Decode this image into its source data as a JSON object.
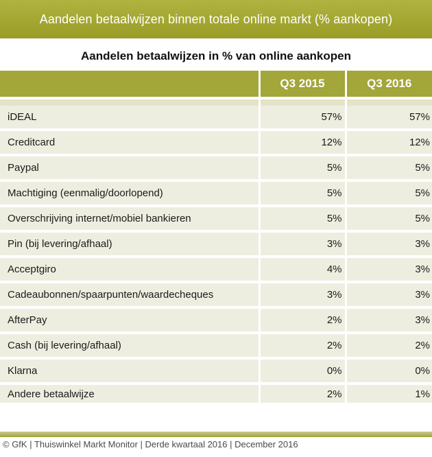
{
  "banner": {
    "title": "Aandelen betaalwijzen binnen totale online markt (% aankopen)"
  },
  "table": {
    "subtitle": "Aandelen betaalwijzen in % van online aankopen",
    "columns": [
      "",
      "Q3 2015",
      "Q3 2016"
    ],
    "rows": [
      {
        "label": "iDEAL",
        "q3_2015": "57%",
        "q3_2016": "57%"
      },
      {
        "label": "Creditcard",
        "q3_2015": "12%",
        "q3_2016": "12%"
      },
      {
        "label": "Paypal",
        "q3_2015": "5%",
        "q3_2016": "5%"
      },
      {
        "label": "Machtiging (eenmalig/doorlopend)",
        "q3_2015": "5%",
        "q3_2016": "5%"
      },
      {
        "label": "Overschrijving internet/mobiel bankieren",
        "q3_2015": "5%",
        "q3_2016": "5%"
      },
      {
        "label": "Pin (bij levering/afhaal)",
        "q3_2015": "3%",
        "q3_2016": "3%"
      },
      {
        "label": "Acceptgiro",
        "q3_2015": "4%",
        "q3_2016": "3%"
      },
      {
        "label": "Cadeaubonnen/spaarpunten/waardecheques",
        "q3_2015": "3%",
        "q3_2016": "3%"
      },
      {
        "label": "AfterPay",
        "q3_2015": "2%",
        "q3_2016": "3%"
      },
      {
        "label": "Cash (bij levering/afhaal)",
        "q3_2015": "2%",
        "q3_2016": "2%"
      },
      {
        "label": "Klarna",
        "q3_2015": "0%",
        "q3_2016": "0%"
      },
      {
        "label": "Andere betaalwijze",
        "q3_2015": "2%",
        "q3_2016": "1%"
      }
    ]
  },
  "footer": {
    "text": "© GfK | Thuiswinkel Markt Monitor | Derde kwartaal 2016 | December 2016"
  },
  "colors": {
    "olive_banner": "#a3a638",
    "row_bg": "#eeeee0"
  }
}
